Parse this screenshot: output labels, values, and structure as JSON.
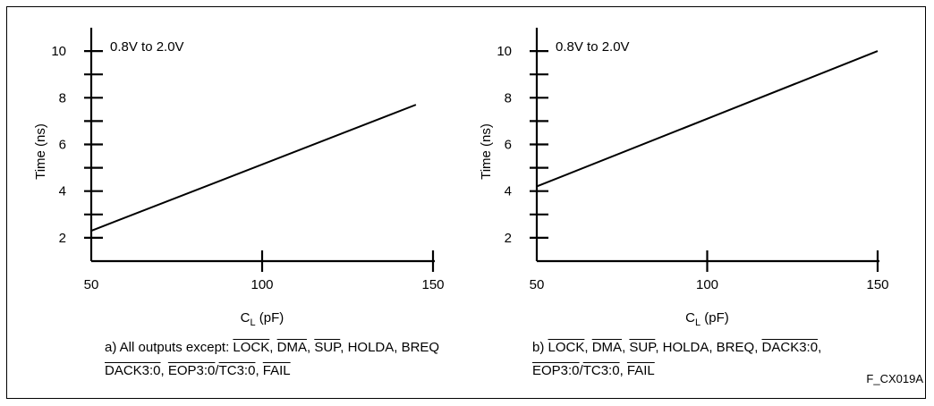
{
  "figure_id": "F_CX019A",
  "chart_data": [
    {
      "type": "line",
      "annotation": "0.8V to 2.0V",
      "ylabel": "Time (ns)",
      "xlabel_main": "C",
      "xlabel_sub": "L",
      "xlabel_rest": " (pF)",
      "xlim": [
        50,
        150
      ],
      "ylim": [
        1,
        11
      ],
      "x_ticks": [
        50,
        100,
        150
      ],
      "y_ticks": [
        2,
        4,
        6,
        8,
        10
      ],
      "y_minor_ticks": [
        3,
        5,
        7,
        9
      ],
      "x": [
        50,
        145
      ],
      "y": [
        2.3,
        7.7
      ],
      "caption": {
        "prefix": "a) All outputs except: ",
        "p1": "LOCK",
        "s1": ", ",
        "p2": "DMA",
        "s2": ", ",
        "p3": "SUP",
        "s3": ", HOLDA, BREQ",
        "p4": "DACK3:0",
        "s4": ", ",
        "p5": "EOP3:0",
        "s5": "/",
        "p6": "TC3:0",
        "s6": ", ",
        "p7": "FAIL"
      }
    },
    {
      "type": "line",
      "annotation": "0.8V to 2.0V",
      "ylabel": "Time (ns)",
      "xlabel_main": "C",
      "xlabel_sub": "L",
      "xlabel_rest": " (pF)",
      "xlim": [
        50,
        150
      ],
      "ylim": [
        1,
        11
      ],
      "x_ticks": [
        50,
        100,
        150
      ],
      "y_ticks": [
        2,
        4,
        6,
        8,
        10
      ],
      "y_minor_ticks": [
        3,
        5,
        7,
        9
      ],
      "x": [
        50,
        150
      ],
      "y": [
        4.2,
        10.0
      ],
      "caption": {
        "prefix": "b) ",
        "p1": "LOCK",
        "s1": ", ",
        "p2": "DMA",
        "s2": ", ",
        "p3": "SUP",
        "s3": ", HOLDA, BREQ, ",
        "p4": "DACK3:0",
        "s4": ",",
        "p5": "EOP3:0",
        "s5": "/",
        "p6": "TC3:0",
        "s6": ", ",
        "p7": "FAIL"
      }
    }
  ]
}
